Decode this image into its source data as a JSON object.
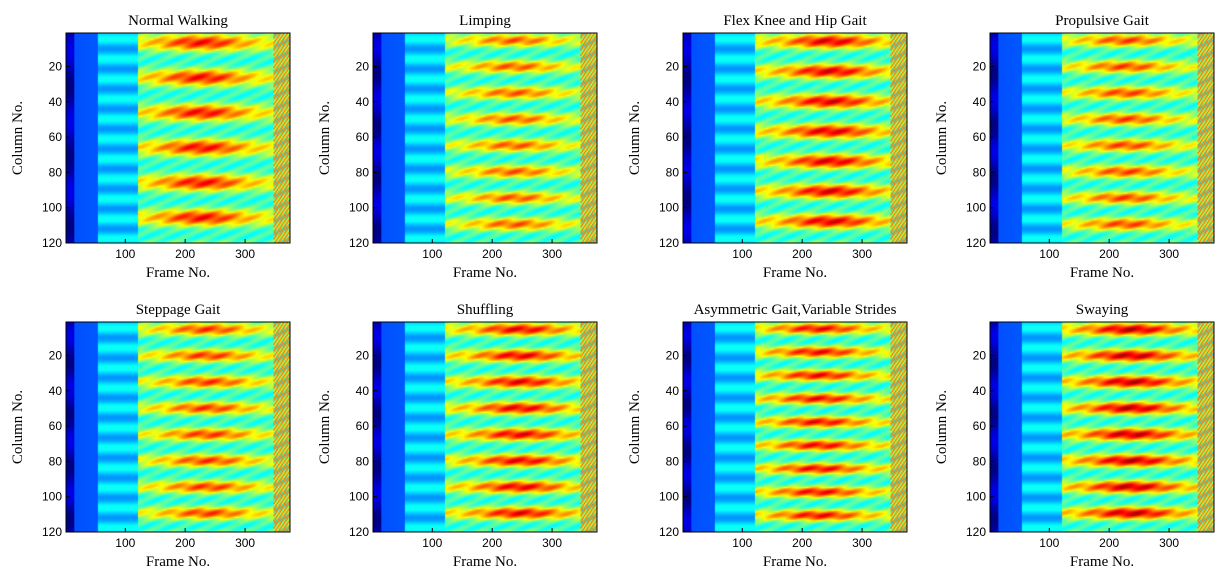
{
  "chart_data": [
    {
      "type": "heatmap",
      "title": "Normal Walking",
      "xlabel": "Frame No.",
      "ylabel": "Column No.",
      "xlim": [
        1,
        375
      ],
      "ylim": [
        1,
        120
      ],
      "xticks": [
        "100",
        "200",
        "300"
      ],
      "yticks": [
        "20",
        "40",
        "60",
        "80",
        "100",
        "120"
      ],
      "colormap": "jet",
      "intensity": 0.8,
      "gait_cycles": 6
    },
    {
      "type": "heatmap",
      "title": "Limping",
      "xlabel": "Frame No.",
      "ylabel": "Column No.",
      "xlim": [
        1,
        375
      ],
      "ylim": [
        1,
        120
      ],
      "xticks": [
        "100",
        "200",
        "300"
      ],
      "yticks": [
        "20",
        "40",
        "60",
        "80",
        "100",
        "120"
      ],
      "colormap": "jet",
      "intensity": 0.66,
      "gait_cycles": 8
    },
    {
      "type": "heatmap",
      "title": "Flex Knee and Hip Gait",
      "xlabel": "Frame No.",
      "ylabel": "Column No.",
      "xlim": [
        1,
        375
      ],
      "ylim": [
        1,
        120
      ],
      "xticks": [
        "100",
        "200",
        "300"
      ],
      "yticks": [
        "20",
        "40",
        "60",
        "80",
        "100",
        "120"
      ],
      "colormap": "jet",
      "intensity": 0.86,
      "gait_cycles": 7
    },
    {
      "type": "heatmap",
      "title": "Propulsive Gait",
      "xlabel": "Frame No.",
      "ylabel": "Column No.",
      "xlim": [
        1,
        375
      ],
      "ylim": [
        1,
        120
      ],
      "xticks": [
        "100",
        "200",
        "300"
      ],
      "yticks": [
        "20",
        "40",
        "60",
        "80",
        "100",
        "120"
      ],
      "colormap": "jet",
      "intensity": 0.7,
      "gait_cycles": 8
    },
    {
      "type": "heatmap",
      "title": "Steppage Gait",
      "xlabel": "Frame No.",
      "ylabel": "Column No.",
      "xlim": [
        1,
        375
      ],
      "ylim": [
        1,
        120
      ],
      "xticks": [
        "100",
        "200",
        "300"
      ],
      "yticks": [
        "20",
        "40",
        "60",
        "80",
        "100",
        "120"
      ],
      "colormap": "jet",
      "intensity": 0.72,
      "gait_cycles": 8
    },
    {
      "type": "heatmap",
      "title": "Shuffling",
      "xlabel": "Frame No.",
      "ylabel": "Column No.",
      "xlim": [
        1,
        375
      ],
      "ylim": [
        1,
        120
      ],
      "xticks": [
        "100",
        "200",
        "300"
      ],
      "yticks": [
        "20",
        "40",
        "60",
        "80",
        "100",
        "120"
      ],
      "colormap": "jet",
      "intensity": 0.84,
      "gait_cycles": 8
    },
    {
      "type": "heatmap",
      "title": "Asymmetric Gait,Variable Strides",
      "xlabel": "Frame No.",
      "ylabel": "Column No.",
      "xlim": [
        1,
        375
      ],
      "ylim": [
        1,
        120
      ],
      "xticks": [
        "100",
        "200",
        "300"
      ],
      "yticks": [
        "20",
        "40",
        "60",
        "80",
        "100",
        "120"
      ],
      "colormap": "jet",
      "intensity": 0.82,
      "gait_cycles": 9
    },
    {
      "type": "heatmap",
      "title": "Swaying",
      "xlabel": "Frame No.",
      "ylabel": "Column No.",
      "xlim": [
        1,
        375
      ],
      "ylim": [
        1,
        120
      ],
      "xticks": [
        "100",
        "200",
        "300"
      ],
      "yticks": [
        "20",
        "40",
        "60",
        "80",
        "100",
        "120"
      ],
      "colormap": "jet",
      "intensity": 0.92,
      "gait_cycles": 8
    }
  ]
}
